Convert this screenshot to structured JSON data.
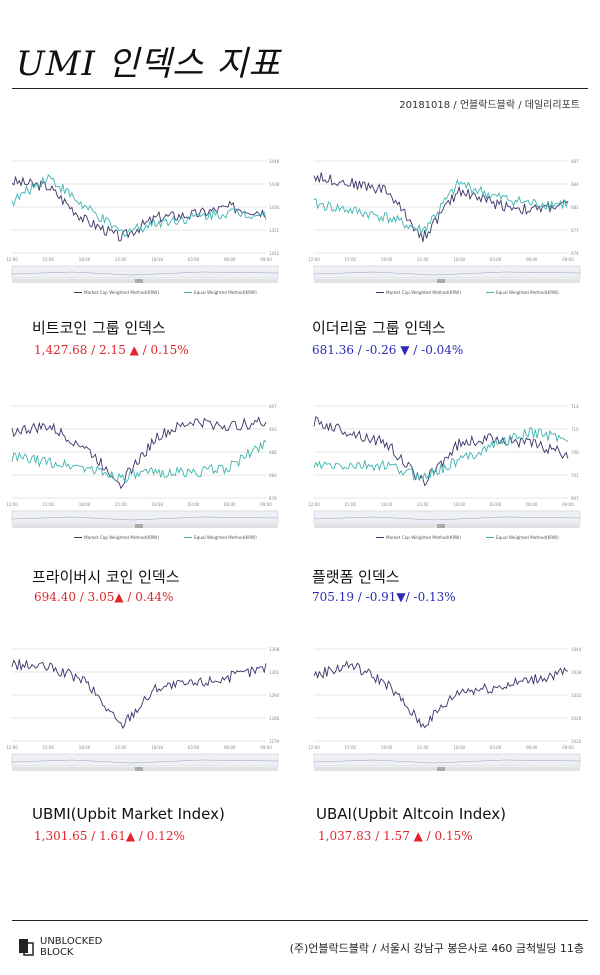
{
  "header": {
    "title": "UMI 인덱스 지표",
    "subline": "20181018 / 언블락드블락 / 데일리리포트"
  },
  "colors": {
    "navy": "#3a3468",
    "teal": "#3fb4b0",
    "up": "#e0262b",
    "down": "#2a2ab8"
  },
  "cards": [
    {
      "name": "비트코인 그룹 인덱스",
      "value": "1,427.68 / 2.15 ▲ / 0.15%",
      "direction": "up",
      "legend": [
        "Market Cap Weighted Method(KRW)",
        "Equal Weighted Method(KRW)"
      ]
    },
    {
      "name": "이더리움 그룹 인덱스",
      "value": "681.36 / -0.26 ▼ / -0.04%",
      "direction": "down",
      "legend": [
        "Market Cap Weighted Method(KRW)",
        "Equal Weighted Method(KRW)"
      ]
    },
    {
      "name": "프라이버시 코인 인덱스",
      "value": "694.40 / 3.05▲ / 0.44%",
      "direction": "up",
      "legend": [
        "Market Cap Weighted Method(KRW)",
        "Equal Weighted Method(KRW)"
      ]
    },
    {
      "name": "플랫폼 인덱스",
      "value": "705.19 / -0.91▼/ -0.13%",
      "direction": "down",
      "legend": [
        "Market Cap Weighted Method(KRW)",
        "Equal Weighted Method(KRW)"
      ]
    },
    {
      "name": "UBMI(Upbit Market Index)",
      "value": "1,301.65 / 1.61▲ / 0.12%",
      "direction": "up",
      "legend": []
    },
    {
      "name": "UBAI(Upbit Altcoin Index)",
      "value": "1,037.83 / 1.57 ▲ / 0.15%",
      "direction": "up",
      "legend": []
    }
  ],
  "chart_data": [
    {
      "type": "line",
      "x": [
        "12:00",
        "15:00",
        "18:00",
        "21:00",
        "10/18",
        "03:00",
        "06:00",
        "09:00"
      ],
      "series": [
        {
          "name": "Market Cap Weighted Method(KRW)",
          "values": [
            1440,
            1438,
            1425,
            1418,
            1426,
            1427,
            1430,
            1428
          ]
        },
        {
          "name": "Equal Weighted Method(KRW)",
          "values": [
            1432,
            1442,
            1430,
            1420,
            1424,
            1426,
            1428,
            1427
          ]
        }
      ]
    },
    {
      "type": "line",
      "x": [
        "12:00",
        "15:00",
        "18:00",
        "21:00",
        "10/18",
        "03:00",
        "06:00",
        "09:00"
      ],
      "series": [
        {
          "name": "Market Cap Weighted Method(KRW)",
          "values": [
            685,
            684,
            683,
            676,
            683,
            681,
            680,
            681
          ]
        },
        {
          "name": "Equal Weighted Method(KRW)",
          "values": [
            681,
            680,
            679,
            677,
            684,
            682,
            681,
            681
          ]
        }
      ]
    },
    {
      "type": "line",
      "x": [
        "12:00",
        "15:00",
        "18:00",
        "21:00",
        "10/18",
        "03:00",
        "06:00",
        "09:00"
      ],
      "series": [
        {
          "name": "Market Cap Weighted Method(KRW)",
          "values": [
            692,
            693,
            689,
            682,
            691,
            694,
            693,
            694
          ]
        },
        {
          "name": "Equal Weighted Method(KRW)",
          "values": [
            687,
            686,
            685,
            683,
            684,
            684,
            685,
            690
          ]
        }
      ]
    },
    {
      "type": "line",
      "x": [
        "12:00",
        "15:00",
        "18:00",
        "21:00",
        "10/18",
        "03:00",
        "06:00",
        "09:00"
      ],
      "series": [
        {
          "name": "Market Cap Weighted Method(KRW)",
          "values": [
            711,
            709,
            707,
            700,
            707,
            708,
            707,
            705
          ]
        },
        {
          "name": "Equal Weighted Method(KRW)",
          "values": [
            703,
            703,
            703,
            701,
            704,
            707,
            709,
            708
          ]
        }
      ]
    },
    {
      "type": "line",
      "x": [
        "12:00",
        "15:00",
        "18:00",
        "21:00",
        "10/18",
        "03:00",
        "06:00",
        "09:00"
      ],
      "series": [
        {
          "name": "UBMI",
          "values": [
            1303,
            1302,
            1298,
            1284,
            1296,
            1297,
            1299,
            1302
          ]
        }
      ]
    },
    {
      "type": "line",
      "x": [
        "12:00",
        "15:00",
        "18:00",
        "21:00",
        "10/18",
        "03:00",
        "06:00",
        "09:00"
      ],
      "series": [
        {
          "name": "UBAI",
          "values": [
            1037,
            1040,
            1035,
            1024,
            1033,
            1034,
            1036,
            1038
          ]
        }
      ]
    }
  ]
}
